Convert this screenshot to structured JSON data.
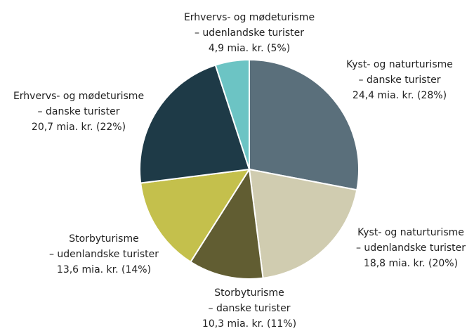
{
  "chart_data": {
    "type": "pie",
    "categories": [
      [
        "Kyst- og naturturisme",
        "– danske turister"
      ],
      [
        "Kyst- og naturturisme",
        "– udenlandske turister"
      ],
      [
        "Storbyturisme",
        "– danske turister"
      ],
      [
        "Storbyturisme",
        "– udenlandske turister"
      ],
      [
        "Erhvervs- og mødeturisme",
        "– danske turister"
      ],
      [
        "Erhvervs- og mødeturisme",
        "– udenlandske turister"
      ]
    ],
    "values": [
      28,
      20,
      11,
      14,
      22,
      5
    ],
    "value_labels": [
      "24,4 mia. kr. (28%)",
      "18,8 mia. kr. (20%)",
      "10,3 mia. kr. (11%)",
      "13,6 mia. kr. (14%)",
      "20,7 mia. kr. (22%)",
      "4,9 mia. kr. (5%)"
    ],
    "colors": [
      "#5a6f7b",
      "#d0ccb0",
      "#615d32",
      "#c4c04c",
      "#1e3a47",
      "#6cc4c4"
    ]
  }
}
